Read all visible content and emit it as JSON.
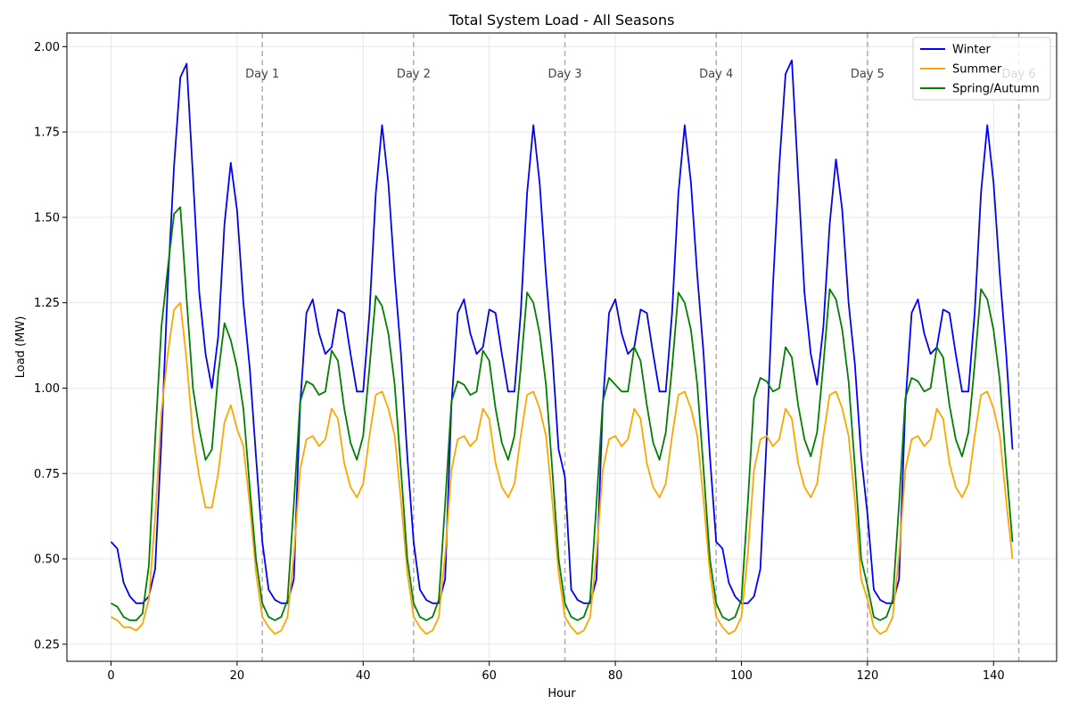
{
  "chart_data": {
    "type": "line",
    "title": "Total System Load - All Seasons",
    "xlabel": "Hour",
    "ylabel": "Load (MW)",
    "xlim": [
      -7,
      150
    ],
    "ylim": [
      0.2,
      2.04
    ],
    "xticks": [
      0,
      20,
      40,
      60,
      80,
      100,
      120,
      140
    ],
    "yticks": [
      0.25,
      0.5,
      0.75,
      1.0,
      1.25,
      1.5,
      1.75,
      2.0
    ],
    "ytick_labels": [
      "0.25",
      "0.50",
      "0.75",
      "1.00",
      "1.25",
      "1.50",
      "1.75",
      "2.00"
    ],
    "grid": true,
    "legend_position": "top-right",
    "day_markers": [
      {
        "x": 24,
        "label": "Day 1"
      },
      {
        "x": 48,
        "label": "Day 2"
      },
      {
        "x": 72,
        "label": "Day 3"
      },
      {
        "x": 96,
        "label": "Day 4"
      },
      {
        "x": 120,
        "label": "Day 5"
      },
      {
        "x": 144,
        "label": "Day 6"
      }
    ],
    "series": [
      {
        "name": "Winter",
        "color": "#0000ff",
        "values": [
          0.55,
          0.53,
          0.43,
          0.39,
          0.37,
          0.37,
          0.39,
          0.47,
          0.85,
          1.3,
          1.65,
          1.91,
          1.95,
          1.62,
          1.28,
          1.1,
          1.0,
          1.15,
          1.48,
          1.66,
          1.52,
          1.25,
          1.06,
          0.8,
          0.55,
          0.41,
          0.38,
          0.37,
          0.37,
          0.44,
          0.95,
          1.22,
          1.26,
          1.16,
          1.1,
          1.12,
          1.23,
          1.22,
          1.1,
          0.99,
          0.99,
          1.22,
          1.57,
          1.77,
          1.6,
          1.33,
          1.1,
          0.8,
          0.55,
          0.41,
          0.38,
          0.37,
          0.37,
          0.44,
          0.95,
          1.22,
          1.26,
          1.16,
          1.1,
          1.12,
          1.23,
          1.22,
          1.1,
          0.99,
          0.99,
          1.22,
          1.57,
          1.77,
          1.6,
          1.33,
          1.1,
          0.82,
          0.74,
          0.41,
          0.38,
          0.37,
          0.37,
          0.44,
          0.95,
          1.22,
          1.26,
          1.16,
          1.1,
          1.12,
          1.23,
          1.22,
          1.1,
          0.99,
          0.99,
          1.22,
          1.57,
          1.77,
          1.6,
          1.33,
          1.1,
          0.8,
          0.55,
          0.53,
          0.43,
          0.39,
          0.37,
          0.37,
          0.39,
          0.47,
          0.85,
          1.3,
          1.65,
          1.92,
          1.96,
          1.62,
          1.28,
          1.1,
          1.01,
          1.18,
          1.48,
          1.67,
          1.52,
          1.25,
          1.07,
          0.8,
          0.63,
          0.41,
          0.38,
          0.37,
          0.37,
          0.44,
          0.95,
          1.22,
          1.26,
          1.16,
          1.1,
          1.12,
          1.23,
          1.22,
          1.1,
          0.99,
          0.99,
          1.22,
          1.57,
          1.77,
          1.6,
          1.33,
          1.1,
          0.82
        ]
      },
      {
        "name": "Summer",
        "color": "#ffa500",
        "values": [
          0.33,
          0.32,
          0.3,
          0.3,
          0.29,
          0.31,
          0.38,
          0.62,
          0.93,
          1.1,
          1.23,
          1.25,
          1.08,
          0.86,
          0.74,
          0.65,
          0.65,
          0.75,
          0.9,
          0.95,
          0.88,
          0.83,
          0.66,
          0.46,
          0.33,
          0.3,
          0.28,
          0.29,
          0.33,
          0.51,
          0.76,
          0.85,
          0.86,
          0.83,
          0.85,
          0.94,
          0.91,
          0.78,
          0.71,
          0.68,
          0.72,
          0.86,
          0.98,
          0.99,
          0.94,
          0.86,
          0.67,
          0.46,
          0.33,
          0.3,
          0.28,
          0.29,
          0.33,
          0.51,
          0.76,
          0.85,
          0.86,
          0.83,
          0.85,
          0.94,
          0.91,
          0.78,
          0.71,
          0.68,
          0.72,
          0.86,
          0.98,
          0.99,
          0.94,
          0.86,
          0.67,
          0.46,
          0.33,
          0.3,
          0.28,
          0.29,
          0.33,
          0.51,
          0.76,
          0.85,
          0.86,
          0.83,
          0.85,
          0.94,
          0.91,
          0.78,
          0.71,
          0.68,
          0.72,
          0.86,
          0.98,
          0.99,
          0.94,
          0.86,
          0.67,
          0.46,
          0.33,
          0.3,
          0.28,
          0.29,
          0.33,
          0.51,
          0.76,
          0.85,
          0.86,
          0.83,
          0.85,
          0.94,
          0.91,
          0.78,
          0.71,
          0.68,
          0.72,
          0.86,
          0.98,
          0.99,
          0.94,
          0.86,
          0.67,
          0.44,
          0.38,
          0.3,
          0.28,
          0.29,
          0.33,
          0.51,
          0.76,
          0.85,
          0.86,
          0.83,
          0.85,
          0.94,
          0.91,
          0.78,
          0.71,
          0.68,
          0.72,
          0.86,
          0.98,
          0.99,
          0.94,
          0.86,
          0.67,
          0.5
        ]
      },
      {
        "name": "Spring/Autumn",
        "color": "#008000",
        "values": [
          0.37,
          0.36,
          0.33,
          0.32,
          0.32,
          0.34,
          0.48,
          0.85,
          1.18,
          1.35,
          1.51,
          1.53,
          1.26,
          1.0,
          0.88,
          0.79,
          0.82,
          1.04,
          1.19,
          1.14,
          1.06,
          0.94,
          0.71,
          0.5,
          0.37,
          0.33,
          0.32,
          0.33,
          0.38,
          0.66,
          0.96,
          1.02,
          1.01,
          0.98,
          0.99,
          1.11,
          1.08,
          0.94,
          0.84,
          0.79,
          0.86,
          1.06,
          1.27,
          1.24,
          1.16,
          1.01,
          0.76,
          0.5,
          0.37,
          0.33,
          0.32,
          0.33,
          0.38,
          0.66,
          0.96,
          1.02,
          1.01,
          0.98,
          0.99,
          1.11,
          1.08,
          0.94,
          0.84,
          0.79,
          0.86,
          1.06,
          1.28,
          1.25,
          1.16,
          1.01,
          0.76,
          0.5,
          0.37,
          0.33,
          0.32,
          0.33,
          0.38,
          0.66,
          0.96,
          1.03,
          1.01,
          0.99,
          0.99,
          1.12,
          1.08,
          0.95,
          0.84,
          0.79,
          0.87,
          1.06,
          1.28,
          1.25,
          1.17,
          1.01,
          0.76,
          0.5,
          0.37,
          0.33,
          0.32,
          0.33,
          0.38,
          0.66,
          0.97,
          1.03,
          1.02,
          0.99,
          1.0,
          1.12,
          1.09,
          0.95,
          0.85,
          0.8,
          0.87,
          1.07,
          1.29,
          1.26,
          1.17,
          1.02,
          0.77,
          0.5,
          0.42,
          0.33,
          0.32,
          0.33,
          0.38,
          0.66,
          0.97,
          1.03,
          1.02,
          0.99,
          1.0,
          1.12,
          1.09,
          0.95,
          0.85,
          0.8,
          0.87,
          1.07,
          1.29,
          1.26,
          1.17,
          1.02,
          0.77,
          0.55
        ]
      }
    ]
  }
}
